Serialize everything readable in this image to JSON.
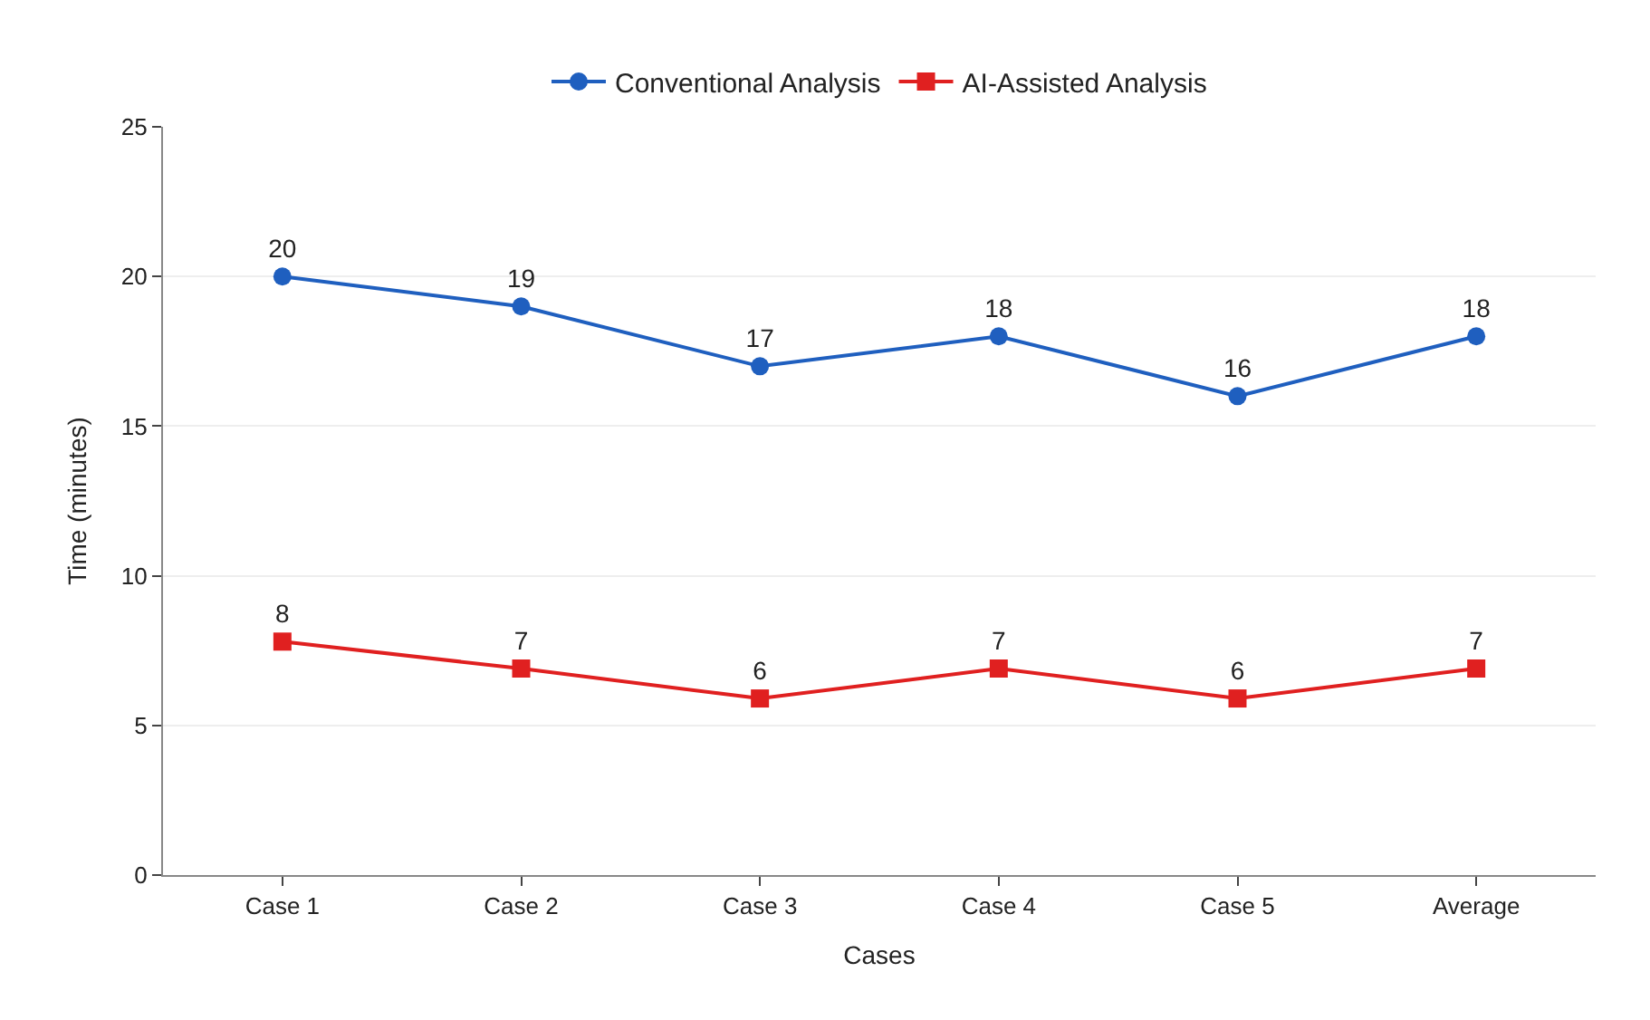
{
  "chart_data": {
    "type": "line",
    "xlabel": "Cases",
    "ylabel": "Time (minutes)",
    "categories": [
      "Case 1",
      "Case 2",
      "Case 3",
      "Case 4",
      "Case 5",
      "Average"
    ],
    "series": [
      {
        "name": "Conventional Analysis",
        "color": "#1f5fbf",
        "marker": "circle",
        "values": [
          20,
          19,
          17,
          18,
          16,
          18
        ],
        "value_labels": [
          "20",
          "19",
          "17",
          "18",
          "16",
          "18"
        ]
      },
      {
        "name": "AI-Assisted Analysis",
        "color": "#e02020",
        "marker": "square",
        "values": [
          7.8,
          6.9,
          5.9,
          6.9,
          5.9,
          6.9
        ],
        "value_labels": [
          "8",
          "7",
          "6",
          "7",
          "6",
          "7"
        ]
      }
    ],
    "ylim": [
      0,
      25
    ],
    "yticks": [
      0,
      5,
      10,
      15,
      20,
      25
    ],
    "grid": "y",
    "legend": "top",
    "line_style": "solid"
  }
}
